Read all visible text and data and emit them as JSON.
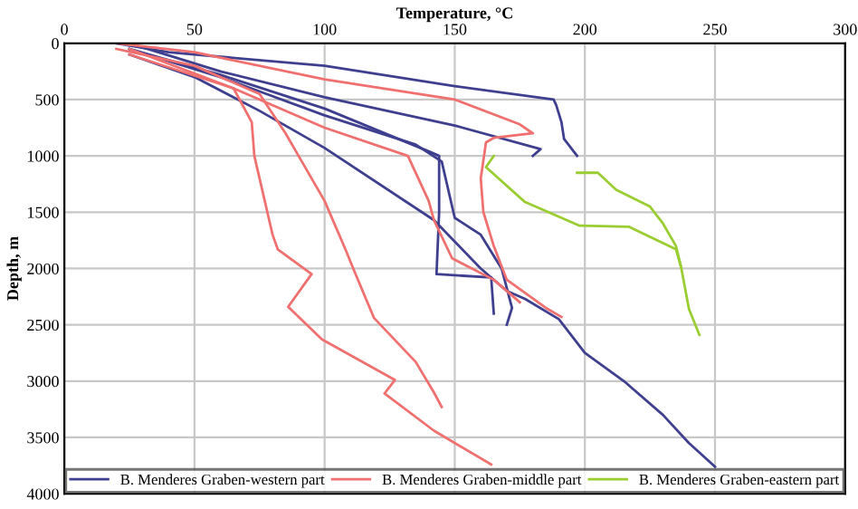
{
  "chart_data": {
    "type": "line",
    "xlabel": "Temperature, °C",
    "ylabel": "Depth, m",
    "xlim": [
      0,
      300
    ],
    "xticks": [
      0,
      50,
      100,
      150,
      200,
      250,
      300
    ],
    "ylim": [
      4000,
      0
    ],
    "yticks": [
      0,
      500,
      1000,
      1500,
      2000,
      2500,
      3000,
      3500,
      4000
    ],
    "grid": true,
    "legend": "bottom",
    "marker": "none",
    "line_style": "solid",
    "series": [
      {
        "name": "B. Menderes Graben-western part",
        "color": "#3f3f8f",
        "x": [
          20,
          40,
          100,
          150,
          188,
          189,
          191,
          192,
          197
        ],
        "values": [
          0,
          80,
          200,
          380,
          500,
          550,
          700,
          850,
          1000
        ]
      },
      {
        "color": "#3f3f8f",
        "x": [
          25,
          60,
          100,
          150,
          183,
          180
        ],
        "values": [
          0,
          250,
          480,
          730,
          940,
          1000
        ]
      },
      {
        "color": "#3f3f8f",
        "x": [
          25,
          60,
          100,
          140,
          144,
          144,
          143,
          164,
          165
        ],
        "values": [
          50,
          280,
          580,
          960,
          1000,
          1500,
          2050,
          2080,
          2400
        ]
      },
      {
        "color": "#3f3f8f",
        "x": [
          25,
          60,
          100,
          135,
          145,
          150,
          160,
          168,
          172,
          170
        ],
        "values": [
          50,
          300,
          640,
          900,
          1050,
          1550,
          1700,
          2000,
          2350,
          2500
        ]
      },
      {
        "color": "#3f3f8f",
        "x": [
          25,
          50,
          75,
          100,
          142,
          160,
          170,
          177,
          190,
          200,
          215,
          230,
          240,
          250
        ],
        "values": [
          100,
          300,
          600,
          930,
          1570,
          2000,
          2200,
          2270,
          2450,
          2750,
          3000,
          3300,
          3550,
          3760
        ]
      },
      {
        "name": "B. Menderes Graben-middle part",
        "color": "#f07070",
        "x": [
          20,
          50,
          100,
          150,
          175,
          180,
          165,
          162,
          160,
          161,
          165,
          170,
          185,
          191
        ],
        "values": [
          0,
          80,
          320,
          500,
          720,
          800,
          840,
          880,
          1200,
          1500,
          1800,
          2100,
          2350,
          2430
        ]
      },
      {
        "color": "#f07070",
        "x": [
          25,
          65,
          100,
          132,
          140,
          142,
          149,
          165,
          175
        ],
        "values": [
          50,
          400,
          750,
          1000,
          1400,
          1570,
          1910,
          2100,
          2300
        ]
      },
      {
        "color": "#f07070",
        "x": [
          20,
          50,
          75,
          85,
          90,
          100,
          108,
          111,
          119,
          135,
          142,
          145
        ],
        "values": [
          50,
          200,
          450,
          800,
          1000,
          1400,
          1830,
          2000,
          2440,
          2830,
          3100,
          3230
        ]
      },
      {
        "color": "#f07070",
        "x": [
          25,
          65,
          72,
          73,
          76,
          80,
          82,
          95,
          86,
          99,
          127,
          123,
          142,
          164
        ],
        "values": [
          100,
          400,
          700,
          1000,
          1300,
          1700,
          1830,
          2050,
          2340,
          2630,
          2990,
          3110,
          3440,
          3740
        ]
      },
      {
        "name": "B. Menderes Graben-eastern part",
        "color": "#9acd32",
        "x": [
          165,
          162,
          177,
          198,
          217,
          235,
          237,
          240,
          244
        ],
        "values": [
          1000,
          1100,
          1410,
          1620,
          1630,
          1830,
          1990,
          2360,
          2590
        ]
      },
      {
        "color": "#9acd32",
        "x": [
          197,
          205,
          212,
          225,
          230,
          235,
          237
        ],
        "values": [
          1150,
          1150,
          1300,
          1450,
          1600,
          1800,
          1990
        ]
      }
    ]
  }
}
